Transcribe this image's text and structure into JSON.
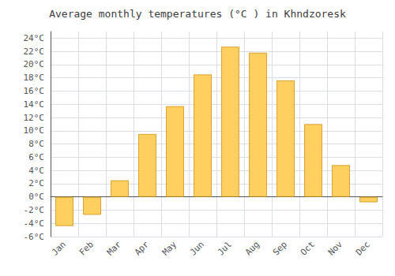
{
  "chart_data": {
    "type": "bar",
    "title": "Average monthly temperatures (°C ) in Khndzoresk",
    "categories": [
      "Jan",
      "Feb",
      "Mar",
      "Apr",
      "May",
      "Jun",
      "Jul",
      "Aug",
      "Sep",
      "Oct",
      "Nov",
      "Dec"
    ],
    "values": [
      -4.4,
      -2.7,
      2.5,
      9.5,
      13.7,
      18.5,
      22.7,
      21.8,
      17.6,
      11.0,
      4.8,
      -0.8
    ],
    "color": "#FFD060",
    "ylim": [
      -6,
      25
    ],
    "yticks": [
      {
        "value": -6,
        "label": "-6°C"
      },
      {
        "value": -4,
        "label": "-4°C"
      },
      {
        "value": -2,
        "label": "-2°C"
      },
      {
        "value": 0,
        "label": "0°C"
      },
      {
        "value": 2,
        "label": "2°C"
      },
      {
        "value": 4,
        "label": "4°C"
      },
      {
        "value": 6,
        "label": "6°C"
      },
      {
        "value": 8,
        "label": "8°C"
      },
      {
        "value": 10,
        "label": "10°C"
      },
      {
        "value": 12,
        "label": "12°C"
      },
      {
        "value": 14,
        "label": "14°C"
      },
      {
        "value": 16,
        "label": "16°C"
      },
      {
        "value": 18,
        "label": "18°C"
      },
      {
        "value": 20,
        "label": "20°C"
      },
      {
        "value": 22,
        "label": "22°C"
      },
      {
        "value": 24,
        "label": "24°C"
      }
    ],
    "grid": true
  }
}
